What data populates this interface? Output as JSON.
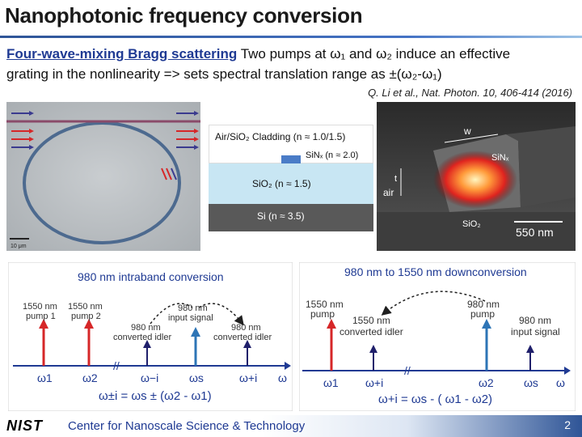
{
  "slide": {
    "title": "Nanophotonic frequency conversion",
    "line1_keyword": "Four-wave-mixing Bragg scattering",
    "line1_text": " Two pumps at ω₁ and ω₂ induce an effective",
    "line2_text": "grating in the nonlinearity => sets spectral translation range as ±(ω₂-ω₁)",
    "citation": "Q. Li et al., Nat. Photon. 10, 406-414 (2016)",
    "page_number": "2"
  },
  "micrograph": {
    "scale_label": "10 μm"
  },
  "layer_stack": {
    "cladding": "Air/SiO₂ Cladding (n ≈ 1.0/1.5)",
    "core": "SiNₓ (n ≈ 2.0)",
    "oxide": "SiO₂ (n ≈ 1.5)",
    "substrate": "Si (n ≈ 3.5)"
  },
  "mode_image": {
    "width_label": "w",
    "core_label": "SiNₓ",
    "thickness_label": "t",
    "air_label": "air",
    "oxide_label": "SiO₂",
    "size_label": "550 nm"
  },
  "intraband": {
    "title": "980 nm intraband conversion",
    "pump1": [
      "1550 nm",
      "pump 1"
    ],
    "pump2": [
      "1550 nm",
      "pump 2"
    ],
    "idler_left": [
      "980 nm",
      "converted idler"
    ],
    "signal": [
      "980 nm",
      "input signal"
    ],
    "idler_right": [
      "980 nm",
      "converted idler"
    ],
    "axis_w1": "ω1",
    "axis_w2": "ω2",
    "axis_wi_minus": "ω−i",
    "axis_ws": "ωs",
    "axis_wi_plus": "ω+i",
    "axis_omega": "ω",
    "break_mark": "//",
    "equation": "ω±i = ωs ± (ω2 - ω1)"
  },
  "downconversion": {
    "title": "980 nm to 1550 nm downconversion",
    "pump_left": [
      "1550 nm",
      "pump"
    ],
    "idler": [
      "1550 nm",
      "converted idler"
    ],
    "pump_right": [
      "980 nm",
      "pump"
    ],
    "signal": [
      "980 nm",
      "input signal"
    ],
    "axis_w1": "ω1",
    "axis_wi": "ω+i",
    "axis_w2": "ω2",
    "axis_ws": "ωs",
    "axis_omega": "ω",
    "break_mark": "//",
    "equation": "ω+i = ωs - ( ω1 - ω2)"
  },
  "footer": {
    "logo": "NIST",
    "org": "Center for Nanoscale Science & Technology"
  },
  "colors": {
    "pump": "#d62728",
    "signal": "#2e75b6",
    "idler": "#1f1f6b",
    "axis": "#1f3a93",
    "arrow_title": "#1f3a93"
  }
}
